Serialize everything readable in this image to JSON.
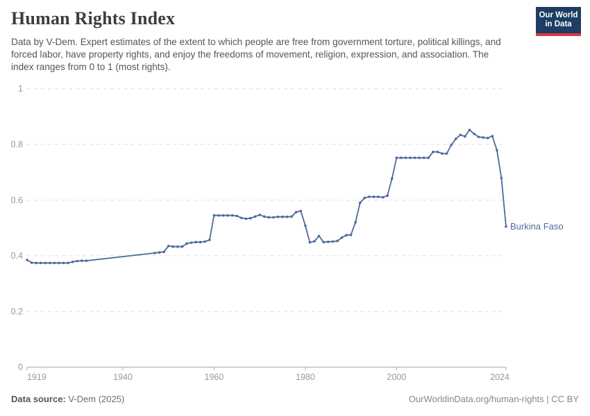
{
  "header": {
    "title": "Human Rights Index",
    "subtitle": "Data by V-Dem. Expert estimates of the extent to which people are free from government torture, political killings, and forced labor, have property rights, and enjoy the freedoms of movement, religion, expression, and association. The index ranges from 0 to 1 (most rights).",
    "logo_line1": "Our World",
    "logo_line2": "in Data"
  },
  "footer": {
    "source_label": "Data source:",
    "source_value": " V-Dem (2025)",
    "right_text": "OurWorldinData.org/human-rights | CC BY"
  },
  "chart_data": {
    "type": "line",
    "title": "Human Rights Index",
    "xlabel": "",
    "ylabel": "",
    "xlim": [
      1919,
      2024
    ],
    "ylim": [
      0,
      1
    ],
    "x_ticks": [
      "1919",
      "1940",
      "1960",
      "1980",
      "2000",
      "2024"
    ],
    "y_ticks": [
      "0",
      "0.2",
      "0.4",
      "0.6",
      "0.8",
      "1"
    ],
    "grid": "horizontal dashed gridlines, solid baseline at 0",
    "legend_position": "label at end of line",
    "colors": {
      "line": "#4c6a9c",
      "grid": "#dedede",
      "axis": "#a8a8a8",
      "tick_label": "#999999",
      "entity_label": "#4c6a9c"
    },
    "note": "no data between 1932 and 1947; line drawn straight across the gap",
    "series": [
      {
        "name": "Burkina Faso",
        "points": [
          [
            1919,
            0.385
          ],
          [
            1920,
            0.375
          ],
          [
            1921,
            0.374
          ],
          [
            1922,
            0.374
          ],
          [
            1923,
            0.374
          ],
          [
            1924,
            0.374
          ],
          [
            1925,
            0.374
          ],
          [
            1926,
            0.374
          ],
          [
            1927,
            0.374
          ],
          [
            1928,
            0.374
          ],
          [
            1929,
            0.378
          ],
          [
            1930,
            0.381
          ],
          [
            1931,
            0.382
          ],
          [
            1932,
            0.382
          ],
          [
            1947,
            0.41
          ],
          [
            1948,
            0.412
          ],
          [
            1949,
            0.414
          ],
          [
            1950,
            0.435
          ],
          [
            1951,
            0.433
          ],
          [
            1952,
            0.433
          ],
          [
            1953,
            0.433
          ],
          [
            1954,
            0.444
          ],
          [
            1955,
            0.447
          ],
          [
            1956,
            0.449
          ],
          [
            1957,
            0.449
          ],
          [
            1958,
            0.451
          ],
          [
            1959,
            0.457
          ],
          [
            1960,
            0.545
          ],
          [
            1961,
            0.545
          ],
          [
            1962,
            0.545
          ],
          [
            1963,
            0.545
          ],
          [
            1964,
            0.545
          ],
          [
            1965,
            0.543
          ],
          [
            1966,
            0.536
          ],
          [
            1967,
            0.533
          ],
          [
            1968,
            0.535
          ],
          [
            1969,
            0.541
          ],
          [
            1970,
            0.547
          ],
          [
            1971,
            0.541
          ],
          [
            1972,
            0.538
          ],
          [
            1973,
            0.538
          ],
          [
            1974,
            0.54
          ],
          [
            1975,
            0.54
          ],
          [
            1976,
            0.54
          ],
          [
            1977,
            0.541
          ],
          [
            1978,
            0.557
          ],
          [
            1979,
            0.561
          ],
          [
            1980,
            0.508
          ],
          [
            1981,
            0.448
          ],
          [
            1982,
            0.452
          ],
          [
            1983,
            0.471
          ],
          [
            1984,
            0.449
          ],
          [
            1985,
            0.45
          ],
          [
            1986,
            0.451
          ],
          [
            1987,
            0.453
          ],
          [
            1988,
            0.465
          ],
          [
            1989,
            0.474
          ],
          [
            1990,
            0.475
          ],
          [
            1991,
            0.52
          ],
          [
            1992,
            0.59
          ],
          [
            1993,
            0.608
          ],
          [
            1994,
            0.612
          ],
          [
            1995,
            0.612
          ],
          [
            1996,
            0.612
          ],
          [
            1997,
            0.61
          ],
          [
            1998,
            0.616
          ],
          [
            1999,
            0.677
          ],
          [
            2000,
            0.752
          ],
          [
            2001,
            0.752
          ],
          [
            2002,
            0.752
          ],
          [
            2003,
            0.752
          ],
          [
            2004,
            0.752
          ],
          [
            2005,
            0.752
          ],
          [
            2006,
            0.752
          ],
          [
            2007,
            0.752
          ],
          [
            2008,
            0.773
          ],
          [
            2009,
            0.773
          ],
          [
            2010,
            0.767
          ],
          [
            2011,
            0.767
          ],
          [
            2012,
            0.798
          ],
          [
            2013,
            0.82
          ],
          [
            2014,
            0.834
          ],
          [
            2015,
            0.829
          ],
          [
            2016,
            0.852
          ],
          [
            2017,
            0.838
          ],
          [
            2018,
            0.827
          ],
          [
            2019,
            0.825
          ],
          [
            2020,
            0.823
          ],
          [
            2021,
            0.83
          ],
          [
            2022,
            0.779
          ],
          [
            2023,
            0.679
          ],
          [
            2024,
            0.505
          ]
        ]
      }
    ]
  }
}
